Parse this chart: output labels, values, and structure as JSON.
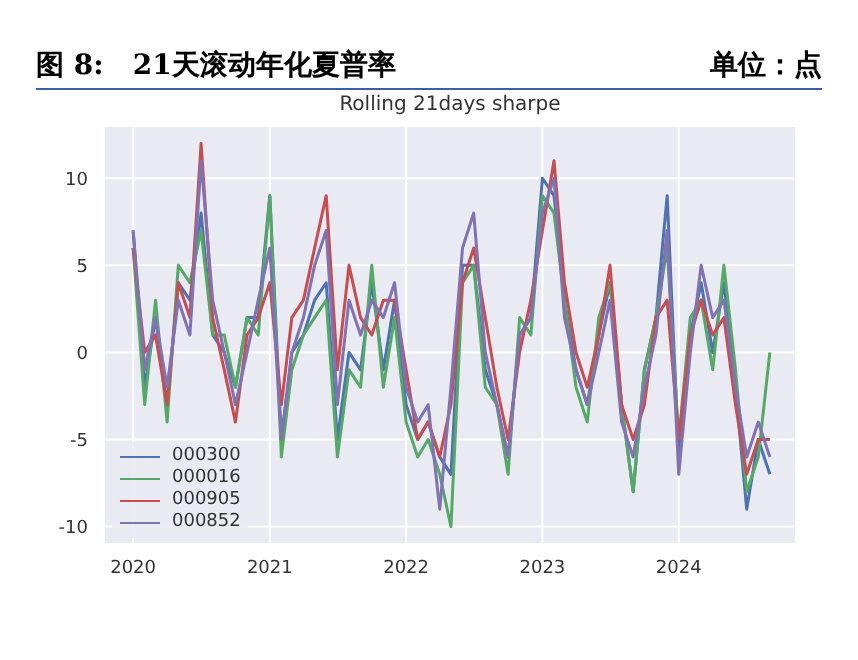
{
  "chart_data": {
    "type": "line",
    "title": "图 8:   21天滚动年化夏普率",
    "subtitle": "Rolling 21days sharpe",
    "annotations": [
      "单位：点"
    ],
    "x": [
      "2020-01",
      "2020-02",
      "2020-03",
      "2020-04",
      "2020-05",
      "2020-06",
      "2020-07",
      "2020-08",
      "2020-09",
      "2020-10",
      "2020-11",
      "2020-12",
      "2021-01",
      "2021-02",
      "2021-03",
      "2021-04",
      "2021-05",
      "2021-06",
      "2021-07",
      "2021-08",
      "2021-09",
      "2021-10",
      "2021-11",
      "2021-12",
      "2022-01",
      "2022-02",
      "2022-03",
      "2022-04",
      "2022-05",
      "2022-06",
      "2022-07",
      "2022-08",
      "2022-09",
      "2022-10",
      "2022-11",
      "2022-12",
      "2023-01",
      "2023-02",
      "2023-03",
      "2023-04",
      "2023-05",
      "2023-06",
      "2023-07",
      "2023-08",
      "2023-09",
      "2023-10",
      "2023-11",
      "2023-12",
      "2024-01",
      "2024-02",
      "2024-03",
      "2024-04",
      "2024-05",
      "2024-06",
      "2024-07",
      "2024-08",
      "2024-09"
    ],
    "series": [
      {
        "name": "000300",
        "color": "#4c72b0",
        "values": [
          7,
          -2,
          2,
          -3,
          4,
          3,
          8,
          1,
          0,
          -2,
          2,
          2,
          9,
          -5,
          0,
          1,
          3,
          4,
          -5,
          0,
          -1,
          4,
          -1,
          3,
          -3,
          -5,
          -4,
          -6,
          -7,
          5,
          5,
          -1,
          -3,
          -6,
          1,
          2,
          10,
          9,
          3,
          -1,
          -3,
          1,
          4,
          -3,
          -8,
          -1,
          2,
          9,
          -6,
          1,
          4,
          0,
          4,
          -2,
          -9,
          -5,
          -7
        ]
      },
      {
        "name": "000016",
        "color": "#55a868",
        "values": [
          6,
          -3,
          3,
          -4,
          5,
          4,
          7,
          1,
          1,
          -2,
          2,
          1,
          9,
          -6,
          -1,
          1,
          2,
          3,
          -6,
          -1,
          -2,
          5,
          -2,
          2,
          -4,
          -6,
          -5,
          -7,
          -10,
          4,
          5,
          -2,
          -3,
          -7,
          2,
          1,
          9,
          8,
          3,
          -2,
          -4,
          2,
          4,
          -3,
          -8,
          -1,
          2,
          6,
          -5,
          2,
          3,
          -1,
          5,
          -1,
          -8,
          -6,
          0
        ]
      },
      {
        "name": "000905",
        "color": "#c44e52",
        "values": [
          6,
          0,
          1,
          -3,
          4,
          2,
          12,
          2,
          -1,
          -4,
          1,
          2,
          4,
          -3,
          2,
          3,
          6,
          9,
          -1,
          5,
          2,
          1,
          3,
          3,
          -1,
          -5,
          -4,
          -6,
          -3,
          4,
          6,
          2,
          -2,
          -5,
          0,
          3,
          7,
          11,
          4,
          0,
          -2,
          1,
          5,
          -3,
          -5,
          -3,
          2,
          3,
          -5,
          1,
          3,
          1,
          2,
          -3,
          -7,
          -5,
          -5
        ]
      },
      {
        "name": "000852",
        "color": "#8172b2",
        "values": [
          7,
          -1,
          2,
          -2,
          3,
          1,
          11,
          3,
          0,
          -3,
          0,
          3,
          6,
          -5,
          0,
          2,
          5,
          7,
          -3,
          3,
          1,
          3,
          2,
          4,
          -2,
          -4,
          -3,
          -9,
          -2,
          6,
          8,
          0,
          -3,
          -6,
          1,
          2,
          8,
          10,
          2,
          -1,
          -3,
          0,
          3,
          -4,
          -6,
          -2,
          1,
          7,
          -7,
          0,
          5,
          2,
          3,
          -2,
          -6,
          -4,
          -6
        ]
      }
    ],
    "xlim": [
      "2019-10-15",
      "2024-11-10"
    ],
    "xticks": [
      "2020",
      "2021",
      "2022",
      "2023",
      "2024"
    ],
    "ylim": [
      -11,
      13
    ],
    "yticks": [
      -10,
      -5,
      0,
      5,
      10
    ],
    "grid": true,
    "legend": "bottom left",
    "line_style": "solid",
    "marker": "none"
  }
}
